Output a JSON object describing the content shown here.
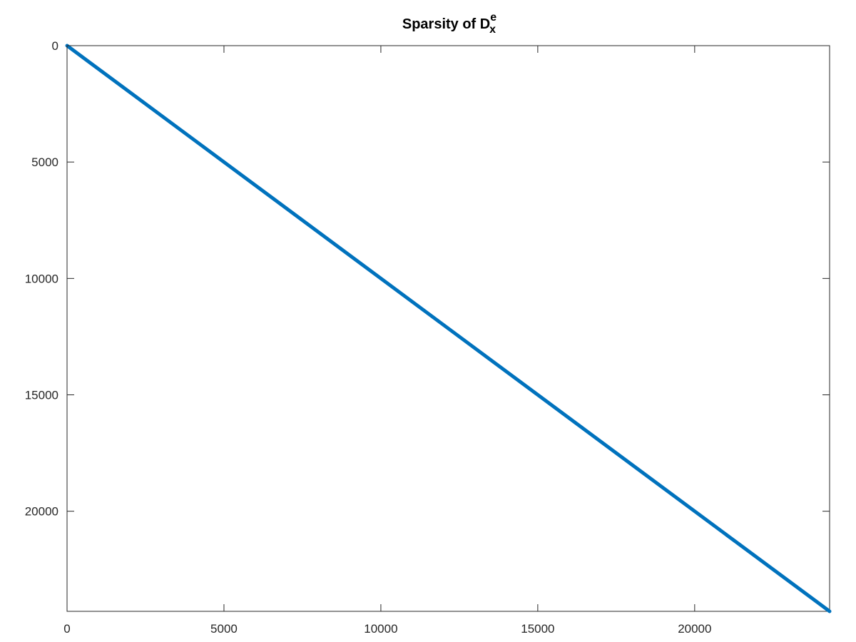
{
  "chart_data": {
    "type": "scatter",
    "title": {
      "base": "Sparsity of D",
      "superscript": "e",
      "subscript": "x"
    },
    "xlabel": "",
    "ylabel": "",
    "xlim": [
      0,
      24300
    ],
    "ylim": [
      0,
      24300
    ],
    "y_reversed": true,
    "grid": false,
    "legend": "none",
    "xticks": [
      0,
      5000,
      10000,
      15000,
      20000
    ],
    "yticks": [
      0,
      5000,
      10000,
      15000,
      20000
    ],
    "xtick_labels": [
      "0",
      "5000",
      "10000",
      "15000",
      "20000"
    ],
    "ytick_labels": [
      "0",
      "5000",
      "10000",
      "15000",
      "20000"
    ],
    "series": [
      {
        "pattern": "diagonal",
        "x": [
          1,
          24300
        ],
        "y": [
          1,
          24300
        ],
        "color": "#0072bd"
      }
    ]
  }
}
